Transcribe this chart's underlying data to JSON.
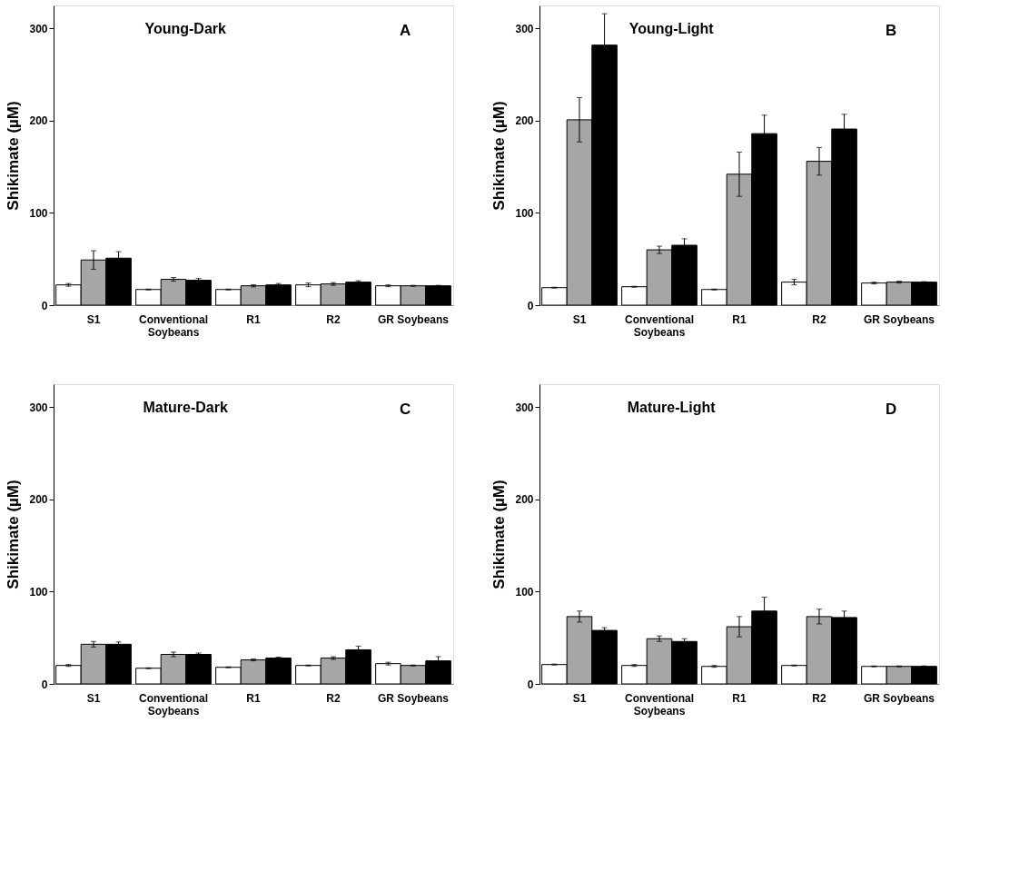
{
  "chart_data": [
    {
      "type": "bar",
      "title": "Young-Dark",
      "annotations": [
        "A"
      ],
      "ylabel": "Shikimate (µM)",
      "ylim": [
        0,
        325
      ],
      "yticks": [
        0,
        100,
        200,
        300
      ],
      "categories": [
        "S1",
        "Conventional Soybeans",
        "R1",
        "R2",
        "GR Soybeans"
      ],
      "series": [
        {
          "color": "#ffffff",
          "values": [
            22,
            17,
            17,
            22,
            21
          ],
          "errors": [
            1.5,
            0.5,
            0.5,
            2,
            1
          ]
        },
        {
          "color": "#a6a6a6",
          "values": [
            49,
            28,
            21,
            23,
            21
          ],
          "errors": [
            10,
            2,
            1.2,
            1.5,
            0.5
          ]
        },
        {
          "color": "#000000",
          "values": [
            51,
            27,
            22,
            25,
            21
          ],
          "errors": [
            7,
            2,
            1.5,
            1.5,
            0.5
          ]
        }
      ]
    },
    {
      "type": "bar",
      "title": "Young-Light",
      "annotations": [
        "B"
      ],
      "ylabel": "Shikimate (µM)",
      "ylim": [
        0,
        325
      ],
      "yticks": [
        0,
        100,
        200,
        300
      ],
      "categories": [
        "S1",
        "Conventional Soybeans",
        "R1",
        "R2",
        "GR Soybeans"
      ],
      "series": [
        {
          "color": "#ffffff",
          "values": [
            19,
            20,
            17,
            25,
            24
          ],
          "errors": [
            0.5,
            0.5,
            0.5,
            3,
            1
          ]
        },
        {
          "color": "#a6a6a6",
          "values": [
            201,
            60,
            142,
            156,
            25
          ],
          "errors": [
            24,
            4,
            24,
            15,
            1
          ]
        },
        {
          "color": "#000000",
          "values": [
            282,
            65,
            186,
            191,
            25
          ],
          "errors": [
            34,
            7,
            20,
            16,
            0.5
          ]
        }
      ]
    },
    {
      "type": "bar",
      "title": "Mature-Dark",
      "annotations": [
        "C"
      ],
      "ylabel": "Shikimate (µM)",
      "ylim": [
        0,
        325
      ],
      "yticks": [
        0,
        100,
        200,
        300
      ],
      "categories": [
        "S1",
        "Conventional Soybeans",
        "R1",
        "R2",
        "GR Soybeans"
      ],
      "series": [
        {
          "color": "#ffffff",
          "values": [
            20,
            17,
            18,
            20,
            22
          ],
          "errors": [
            1,
            0.5,
            0.5,
            0.5,
            1.5
          ]
        },
        {
          "color": "#a6a6a6",
          "values": [
            43,
            32,
            26,
            28,
            20
          ],
          "errors": [
            3,
            2.5,
            1,
            1.5,
            0.5
          ]
        },
        {
          "color": "#000000",
          "values": [
            43,
            32,
            28,
            37,
            25
          ],
          "errors": [
            2.5,
            1.5,
            1,
            4,
            4.6
          ]
        }
      ]
    },
    {
      "type": "bar",
      "title": "Mature-Light",
      "annotations": [
        "D"
      ],
      "ylabel": "Shikimate (µM)",
      "ylim": [
        0,
        325
      ],
      "yticks": [
        0,
        100,
        200,
        300
      ],
      "categories": [
        "S1",
        "Conventional Soybeans",
        "R1",
        "R2",
        "GR Soybeans"
      ],
      "series": [
        {
          "color": "#ffffff",
          "values": [
            21,
            20,
            19,
            20,
            19
          ],
          "errors": [
            0.5,
            1,
            1,
            0.5,
            0.5
          ]
        },
        {
          "color": "#a6a6a6",
          "values": [
            73,
            49,
            62,
            73,
            19
          ],
          "errors": [
            6,
            3,
            11,
            8,
            0.5
          ]
        },
        {
          "color": "#000000",
          "values": [
            58,
            46,
            79,
            72,
            19
          ],
          "errors": [
            3,
            3,
            15,
            7,
            0.5
          ]
        }
      ]
    }
  ]
}
